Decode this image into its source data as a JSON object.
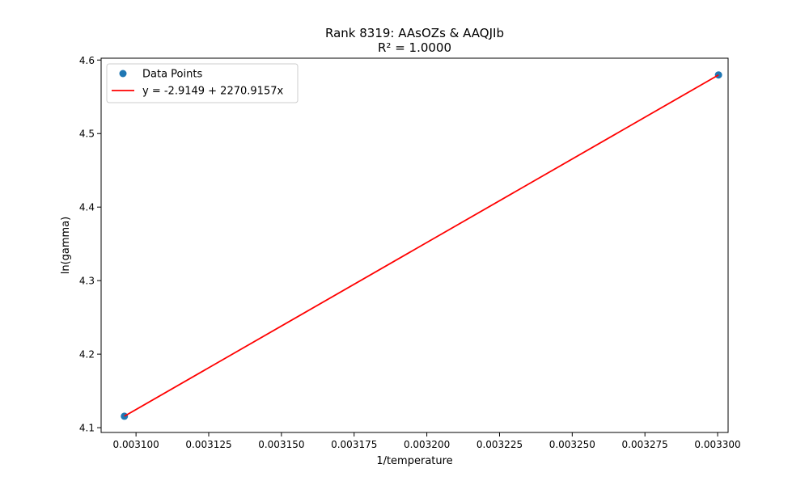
{
  "chart_data": {
    "type": "scatter",
    "title": "Rank 8319: AAsOZs & AAQJIb",
    "subtitle": "R² = 1.0000",
    "xlabel": "1/temperature",
    "ylabel": "ln(gamma)",
    "xlim": [
      0.003088,
      0.0033036
    ],
    "ylim": [
      4.0935,
      4.6025
    ],
    "xticks": [
      0.0031,
      0.003125,
      0.00315,
      0.003175,
      0.0032,
      0.003225,
      0.00325,
      0.003275,
      0.0033
    ],
    "xtick_labels": [
      "0.003100",
      "0.003125",
      "0.003150",
      "0.003175",
      "0.003200",
      "0.003225",
      "0.003250",
      "0.003275",
      "0.003300"
    ],
    "yticks": [
      4.1,
      4.2,
      4.3,
      4.4,
      4.5,
      4.6
    ],
    "ytick_labels": [
      "4.1",
      "4.2",
      "4.3",
      "4.4",
      "4.5",
      "4.6"
    ],
    "grid": false,
    "legend_position": "top-left",
    "series": [
      {
        "name": "Data Points",
        "kind": "scatter",
        "color": "#1f77b4",
        "x": [
          0.003096,
          0.0033003
        ],
        "y": [
          4.1156,
          4.5797
        ]
      },
      {
        "name": "y = -2.9149 + 2270.9157x",
        "kind": "line",
        "color": "#ff0000",
        "x": [
          0.003096,
          0.0033003
        ],
        "y": [
          4.1156,
          4.5797
        ]
      }
    ]
  }
}
